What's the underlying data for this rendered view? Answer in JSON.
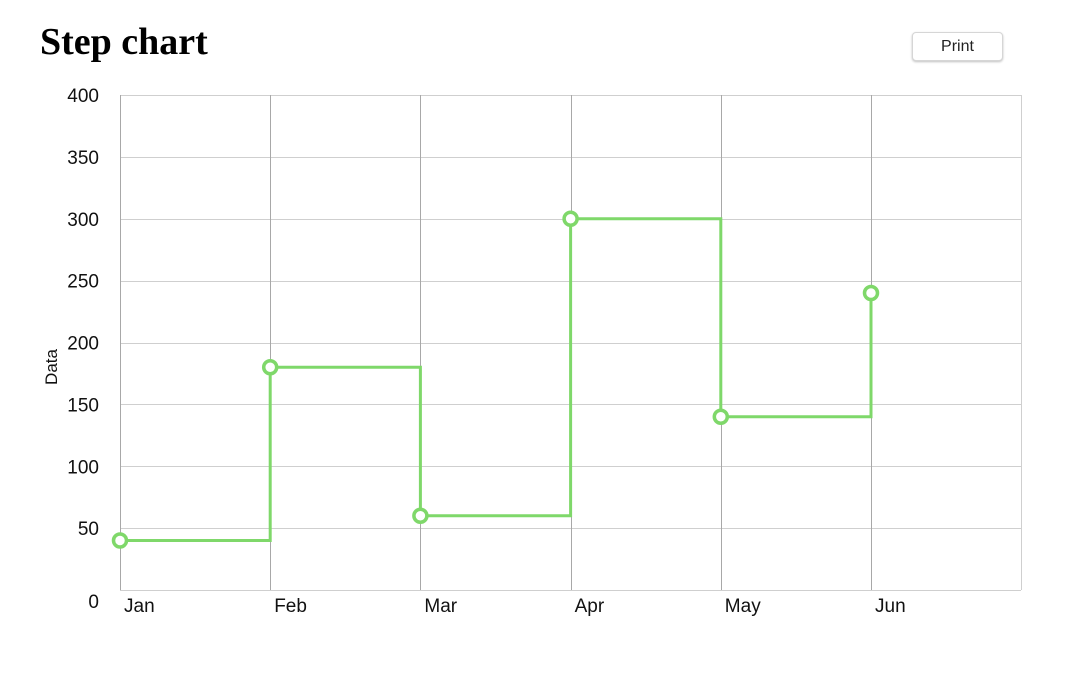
{
  "page": {
    "title": "Step chart",
    "print_label": "Print"
  },
  "colors": {
    "line": "#7fd86a",
    "grid": "#cfcfcf",
    "vertical_grid": "#a8a8a8"
  },
  "chart_data": {
    "type": "line",
    "step": "after",
    "title": "",
    "xlabel": "",
    "ylabel": "Data",
    "categories": [
      "Jan",
      "Feb",
      "Mar",
      "Apr",
      "May",
      "Jun"
    ],
    "series": [
      {
        "values": [
          40,
          180,
          60,
          300,
          140,
          240
        ]
      }
    ],
    "ylim": [
      0,
      400
    ],
    "yticks": [
      0,
      50,
      100,
      150,
      200,
      250,
      300,
      350,
      400
    ],
    "grid": true,
    "legend": "none"
  }
}
